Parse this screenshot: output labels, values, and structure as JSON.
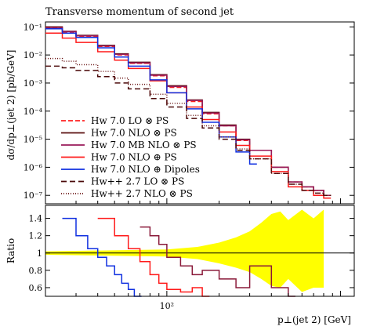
{
  "chart_data": {
    "type": "line",
    "title": "Transverse momentum of second jet",
    "main": {
      "ylabel": "dσ/dp⊥(jet 2) [pb/GeV]",
      "yscale": "log",
      "ylim": [
        5e-08,
        0.15
      ],
      "yticks": [
        {
          "value": 0.1,
          "label": "10⁻¹"
        },
        {
          "value": 0.01,
          "label": "10⁻²"
        },
        {
          "value": 0.001,
          "label": "10⁻³"
        },
        {
          "value": 0.0001,
          "label": "10⁻⁴"
        },
        {
          "value": 1e-05,
          "label": "10⁻⁵"
        },
        {
          "value": 1e-06,
          "label": "10⁻⁶"
        },
        {
          "value": 1e-07,
          "label": "10⁻⁷"
        }
      ]
    },
    "ratio": {
      "ylabel": "Ratio",
      "ylim": [
        0.5,
        1.55
      ],
      "yticks": [
        {
          "value": 0.6,
          "label": "0.6"
        },
        {
          "value": 0.8,
          "label": "0.8"
        },
        {
          "value": 1.0,
          "label": "1"
        },
        {
          "value": 1.2,
          "label": "1.2"
        },
        {
          "value": 1.4,
          "label": "1.4"
        }
      ]
    },
    "xaxis": {
      "label": "p⊥(jet 2) [GeV]",
      "scale": "log",
      "xlim": [
        20,
        1200
      ],
      "ticks": [
        {
          "value": 100,
          "label": "10²"
        }
      ]
    },
    "legend_placement": "lower-left",
    "series": [
      {
        "name": "Hw 7.0 LO ⊗ PS",
        "color": "#ff2020",
        "dash": "6,3",
        "x": [
          20,
          25,
          30,
          40,
          50,
          60,
          80,
          100,
          130,
          160,
          200,
          250,
          300,
          400,
          500,
          600,
          700,
          800
        ],
        "y": [
          0.09,
          0.065,
          0.045,
          0.02,
          0.01,
          0.005,
          0.0018,
          0.0007,
          0.00022,
          8e-05,
          3e-05,
          9e-06,
          4e-06,
          1e-06,
          3e-07,
          2e-07,
          1.5e-07,
          1e-07
        ]
      },
      {
        "name": "Hw 7.0 NLO ⊗ PS",
        "color": "#5a0e0e",
        "dash": "",
        "x": [
          20,
          25,
          30,
          40,
          50,
          60,
          80,
          100,
          130,
          160,
          200,
          250,
          300,
          400,
          500,
          600,
          700,
          800
        ],
        "y": [
          0.1,
          0.07,
          0.05,
          0.022,
          0.011,
          0.0055,
          0.002,
          0.0008,
          0.00025,
          9e-05,
          3.2e-05,
          1e-05,
          4e-06,
          1e-06,
          3e-07,
          2e-07,
          1.5e-07,
          1e-07
        ]
      },
      {
        "name": "Hw 7.0 MB NLO ⊗ PS",
        "color": "#9a1a5a",
        "dash": "",
        "x": [
          20,
          25,
          30,
          40,
          50,
          60,
          80,
          100,
          130,
          160,
          200,
          250,
          300,
          400,
          500,
          600,
          700,
          800
        ],
        "y": [
          0.095,
          0.068,
          0.048,
          0.021,
          0.0105,
          0.0052,
          0.0019,
          0.00075,
          0.00024,
          8.5e-05,
          3e-05,
          9.5e-06,
          4e-06,
          1e-06,
          3e-07,
          2e-07,
          1.5e-07,
          1e-07
        ]
      },
      {
        "name": "Hw 7.0 NLO ⊕ PS",
        "color": "#ff1a1a",
        "dash": "",
        "x": [
          20,
          25,
          30,
          40,
          50,
          60,
          80,
          100,
          130,
          160,
          200,
          250,
          300,
          400,
          500,
          600,
          700,
          800
        ],
        "y": [
          0.06,
          0.04,
          0.028,
          0.013,
          0.0065,
          0.0033,
          0.0012,
          0.00045,
          0.00014,
          5e-05,
          1.8e-05,
          6e-06,
          2.5e-06,
          7e-07,
          2e-07,
          1.5e-07,
          1e-07,
          8e-08
        ]
      },
      {
        "name": "Hw 7.0 NLO ⊕ Dipoles",
        "color": "#1030e0",
        "dash": "",
        "x": [
          20,
          25,
          30,
          40,
          50,
          60,
          80,
          100,
          130,
          160,
          200,
          250,
          300
        ],
        "y": [
          0.085,
          0.06,
          0.042,
          0.018,
          0.0085,
          0.004,
          0.0013,
          0.00045,
          0.00012,
          4e-05,
          1.2e-05,
          3.5e-06,
          1.3e-06
        ]
      },
      {
        "name": "Hw++ 2.7 LO ⊗ PS",
        "color": "#4a0808",
        "dash": "7,4",
        "x": [
          20,
          25,
          30,
          40,
          50,
          60,
          80,
          100,
          130,
          160,
          200,
          250,
          300,
          400,
          500,
          600,
          700,
          800
        ],
        "y": [
          0.004,
          0.0035,
          0.0028,
          0.0017,
          0.001,
          0.00062,
          0.00028,
          0.00014,
          5.5e-05,
          2.5e-05,
          1e-05,
          4e-06,
          2e-06,
          6e-07,
          2.5e-07,
          1.5e-07,
          1.2e-07,
          1e-07
        ]
      },
      {
        "name": "Hw++ 2.7 NLO ⊗ PS",
        "color": "#6b1515",
        "dash": "1,2",
        "x": [
          20,
          25,
          30,
          40,
          50,
          60,
          80,
          100,
          130,
          160,
          200,
          250,
          300,
          400,
          500,
          600,
          700,
          800
        ],
        "y": [
          0.0075,
          0.006,
          0.0045,
          0.0026,
          0.0015,
          0.0009,
          0.0004,
          0.00019,
          7e-05,
          3e-05,
          1.2e-05,
          4.5e-06,
          2e-06,
          6e-07,
          2.5e-07,
          1.5e-07,
          1.2e-07,
          1e-07
        ]
      }
    ],
    "ratio_series": [
      {
        "name": "Hw 7.0 NLO ⊕ Dipoles",
        "color": "#1030e0",
        "x": [
          25,
          30,
          35,
          40,
          45,
          50,
          55,
          60,
          65
        ],
        "y": [
          1.4,
          1.2,
          1.05,
          0.95,
          0.85,
          0.75,
          0.65,
          0.58,
          0.5
        ]
      },
      {
        "name": "Hw 7.0 NLO ⊕ PS",
        "color": "#ff1a1a",
        "x": [
          40,
          50,
          60,
          70,
          80,
          90,
          100,
          120,
          140,
          160
        ],
        "y": [
          1.4,
          1.2,
          1.05,
          0.9,
          0.75,
          0.65,
          0.58,
          0.55,
          0.6,
          0.5
        ]
      },
      {
        "name": "Hw 7.0 MB NLO ⊗ PS",
        "color": "#8a1a3a",
        "x": [
          70,
          80,
          90,
          100,
          120,
          140,
          160,
          200,
          250,
          300,
          400,
          500
        ],
        "y": [
          1.3,
          1.2,
          1.1,
          0.95,
          0.85,
          0.75,
          0.8,
          0.7,
          0.6,
          0.85,
          0.6,
          0.5
        ]
      }
    ],
    "band": {
      "color": "#ffff00",
      "x": [
        20,
        100,
        150,
        200,
        250,
        300,
        350,
        400,
        450,
        500,
        600,
        700,
        800
      ],
      "lo": [
        0.98,
        0.96,
        0.93,
        0.88,
        0.83,
        0.78,
        0.7,
        0.62,
        0.6,
        0.7,
        0.55,
        0.6,
        0.6
      ],
      "hi": [
        1.02,
        1.04,
        1.07,
        1.12,
        1.18,
        1.25,
        1.35,
        1.45,
        1.48,
        1.38,
        1.5,
        1.4,
        1.5
      ]
    }
  }
}
